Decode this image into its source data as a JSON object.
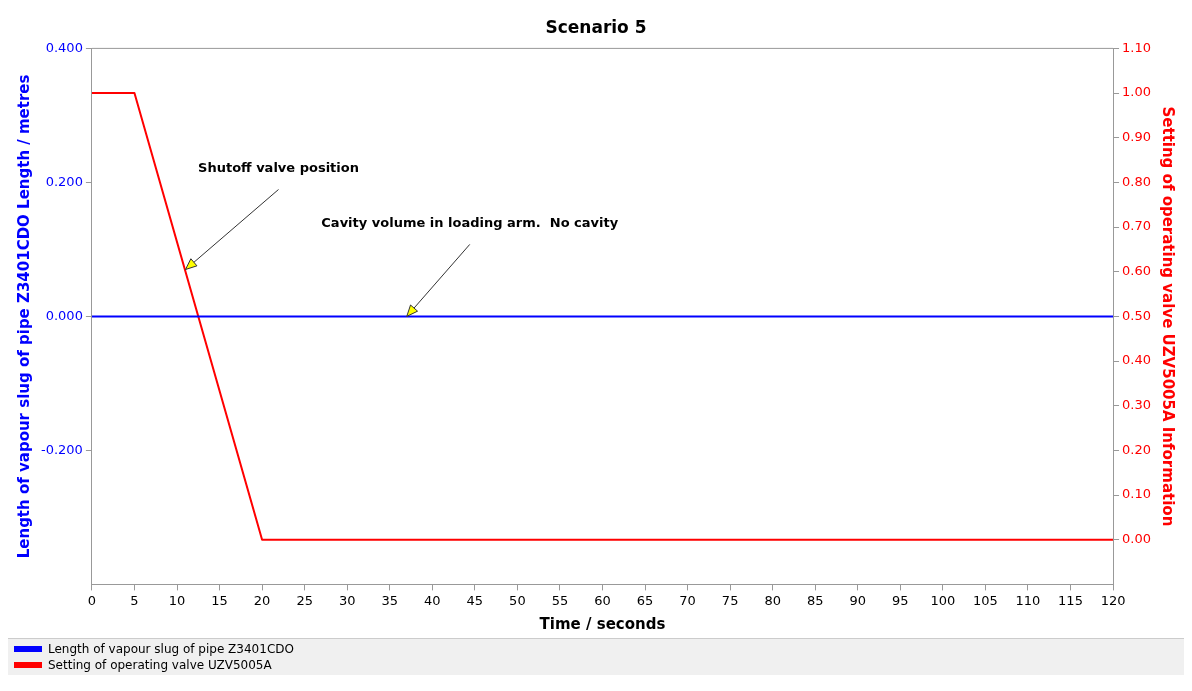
{
  "chart_data": {
    "type": "line",
    "title": "Scenario 5",
    "xlabel": "Time / seconds",
    "ylabel": "Length of vapour slug of pipe Z3401CDO Length / metres",
    "y2label": "Setting of operating valve UZV5005A Information",
    "xlim": [
      0,
      120
    ],
    "xticks": [
      0,
      5,
      10,
      15,
      20,
      25,
      30,
      35,
      40,
      45,
      50,
      55,
      60,
      65,
      70,
      75,
      80,
      85,
      90,
      95,
      100,
      105,
      110,
      115,
      120
    ],
    "ylim": [
      -0.4,
      0.4
    ],
    "yticks": [
      {
        "value": 0.4,
        "label": "0.400"
      },
      {
        "value": 0.2,
        "label": "0.200"
      },
      {
        "value": 0,
        "label": "0.000"
      },
      {
        "value": -0.2,
        "label": "-0.200"
      }
    ],
    "y2lim": [
      -0.1,
      1.1
    ],
    "y2ticks": [
      {
        "value": 0,
        "label": "0.00"
      },
      {
        "value": 0.1,
        "label": "0.10"
      },
      {
        "value": 0.2,
        "label": "0.20"
      },
      {
        "value": 0.3,
        "label": "0.30"
      },
      {
        "value": 0.4,
        "label": "0.40"
      },
      {
        "value": 0.5,
        "label": "0.50"
      },
      {
        "value": 0.6,
        "label": "0.60"
      },
      {
        "value": 0.7,
        "label": "0.70"
      },
      {
        "value": 0.8,
        "label": "0.80"
      },
      {
        "value": 0.9,
        "label": "0.90"
      },
      {
        "value": 1,
        "label": "1.00"
      },
      {
        "value": 1.1,
        "label": "1.10"
      }
    ],
    "series": [
      {
        "name": "Length of vapour slug of pipe Z3401CDO",
        "color": "#0000ff",
        "x": [
          0,
          120
        ],
        "values": [
          0,
          0
        ]
      },
      {
        "name": "Setting of operating valve UZV5005A",
        "color": "#ff0000",
        "axis": "y2",
        "x": [
          0,
          5,
          20,
          120
        ],
        "values": [
          1,
          1,
          0,
          0
        ]
      }
    ],
    "annotations": [
      {
        "text": "Shutoff valve position",
        "x": 11,
        "y": 0.07
      },
      {
        "text": "Cavity volume in loading arm.  No cavity",
        "x": 37,
        "y": 0
      }
    ],
    "legend": "bottom",
    "grid": false,
    "marker": "none",
    "line_style": "solid"
  }
}
